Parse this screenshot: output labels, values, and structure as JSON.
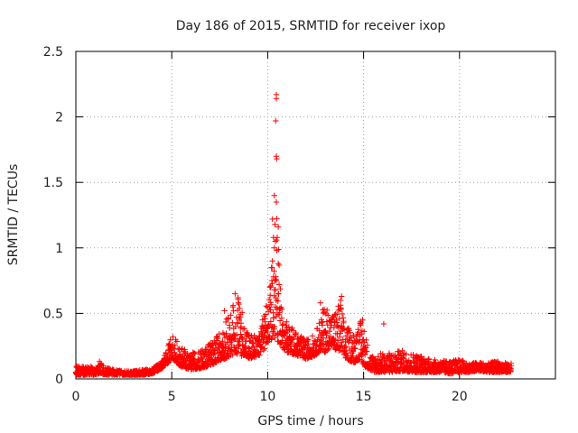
{
  "chart_data": {
    "type": "scatter",
    "title": "Day 186 of 2015, SRMTID for receiver ixop",
    "xlabel": "GPS time / hours",
    "ylabel": "SRMTID / TECUs",
    "xlim": [
      0,
      25
    ],
    "ylim": [
      0,
      2.5
    ],
    "x_ticks": [
      0,
      5,
      10,
      15,
      20
    ],
    "x_tick_labels": [
      "0",
      "5",
      "10",
      "15",
      "20"
    ],
    "y_ticks": [
      0,
      0.5,
      1,
      1.5,
      2,
      2.5
    ],
    "y_tick_labels": [
      "0",
      "0.5",
      "1",
      "1.5",
      "2",
      "2.5"
    ],
    "grid": true,
    "marker": "+",
    "marker_color": "#ff0000",
    "series": [
      {
        "name": "SRMTID",
        "envelope": {
          "x": [
            0,
            0.5,
            1,
            1.2,
            1.5,
            2,
            2.5,
            3,
            3.5,
            4,
            4.5,
            4.8,
            5,
            5.2,
            5.5,
            6,
            6.5,
            7,
            7.5,
            8,
            8.3,
            8.5,
            9,
            9.5,
            9.8,
            10,
            10.2,
            10.3,
            10.4,
            10.5,
            10.7,
            11,
            11.5,
            12,
            12.5,
            12.8,
            13,
            13.3,
            13.5,
            13.8,
            14,
            14.5,
            14.8,
            15,
            15.3,
            15.5,
            16,
            16.5,
            17,
            17.5,
            18,
            18.5,
            19,
            19.5,
            20,
            20.5,
            21,
            21.5,
            22,
            22.5,
            22.7
          ],
          "low": [
            0.03,
            0.03,
            0.03,
            0.04,
            0.03,
            0.03,
            0.03,
            0.03,
            0.03,
            0.04,
            0.08,
            0.12,
            0.16,
            0.13,
            0.09,
            0.07,
            0.08,
            0.1,
            0.14,
            0.16,
            0.2,
            0.18,
            0.15,
            0.17,
            0.22,
            0.28,
            0.3,
            0.35,
            0.3,
            0.28,
            0.25,
            0.2,
            0.18,
            0.15,
            0.18,
            0.22,
            0.2,
            0.25,
            0.22,
            0.2,
            0.16,
            0.12,
            0.15,
            0.1,
            0.07,
            0.05,
            0.05,
            0.05,
            0.06,
            0.05,
            0.05,
            0.05,
            0.05,
            0.04,
            0.05,
            0.05,
            0.06,
            0.05,
            0.05,
            0.05,
            0.05
          ],
          "high": [
            0.1,
            0.09,
            0.1,
            0.14,
            0.09,
            0.07,
            0.06,
            0.06,
            0.07,
            0.08,
            0.14,
            0.25,
            0.33,
            0.3,
            0.24,
            0.2,
            0.22,
            0.27,
            0.35,
            0.5,
            0.6,
            0.62,
            0.35,
            0.32,
            0.5,
            0.6,
            0.85,
            1.1,
            1.4,
            1.25,
            0.55,
            0.45,
            0.35,
            0.3,
            0.35,
            0.5,
            0.58,
            0.5,
            0.52,
            0.6,
            0.42,
            0.35,
            0.45,
            0.42,
            0.2,
            0.18,
            0.2,
            0.2,
            0.22,
            0.2,
            0.18,
            0.15,
            0.14,
            0.14,
            0.15,
            0.12,
            0.13,
            0.12,
            0.14,
            0.12,
            0.12
          ]
        },
        "outliers": [
          {
            "x": 10.45,
            "y": 2.17
          },
          {
            "x": 10.45,
            "y": 2.14
          },
          {
            "x": 10.42,
            "y": 1.97
          },
          {
            "x": 10.45,
            "y": 1.7
          },
          {
            "x": 10.47,
            "y": 1.68
          },
          {
            "x": 10.35,
            "y": 1.4
          },
          {
            "x": 10.45,
            "y": 1.35
          },
          {
            "x": 10.25,
            "y": 1.22
          },
          {
            "x": 10.38,
            "y": 1.18
          },
          {
            "x": 10.55,
            "y": 1.16
          },
          {
            "x": 10.3,
            "y": 1.08
          },
          {
            "x": 10.5,
            "y": 1.08
          },
          {
            "x": 10.4,
            "y": 1.05
          },
          {
            "x": 10.35,
            "y": 1.0
          },
          {
            "x": 10.48,
            "y": 0.98
          },
          {
            "x": 10.25,
            "y": 0.9
          },
          {
            "x": 10.55,
            "y": 0.88
          },
          {
            "x": 10.2,
            "y": 0.85
          },
          {
            "x": 10.3,
            "y": 0.78
          },
          {
            "x": 10.45,
            "y": 0.75
          },
          {
            "x": 10.6,
            "y": 0.72
          },
          {
            "x": 10.15,
            "y": 0.7
          },
          {
            "x": 10.35,
            "y": 0.68
          },
          {
            "x": 10.55,
            "y": 0.65
          },
          {
            "x": 8.3,
            "y": 0.65
          },
          {
            "x": 8.45,
            "y": 0.62
          },
          {
            "x": 13.85,
            "y": 0.63
          },
          {
            "x": 13.8,
            "y": 0.6
          },
          {
            "x": 12.75,
            "y": 0.58
          },
          {
            "x": 16.05,
            "y": 0.42
          },
          {
            "x": 14.95,
            "y": 0.45
          },
          {
            "x": 7.75,
            "y": 0.52
          }
        ]
      }
    ]
  }
}
